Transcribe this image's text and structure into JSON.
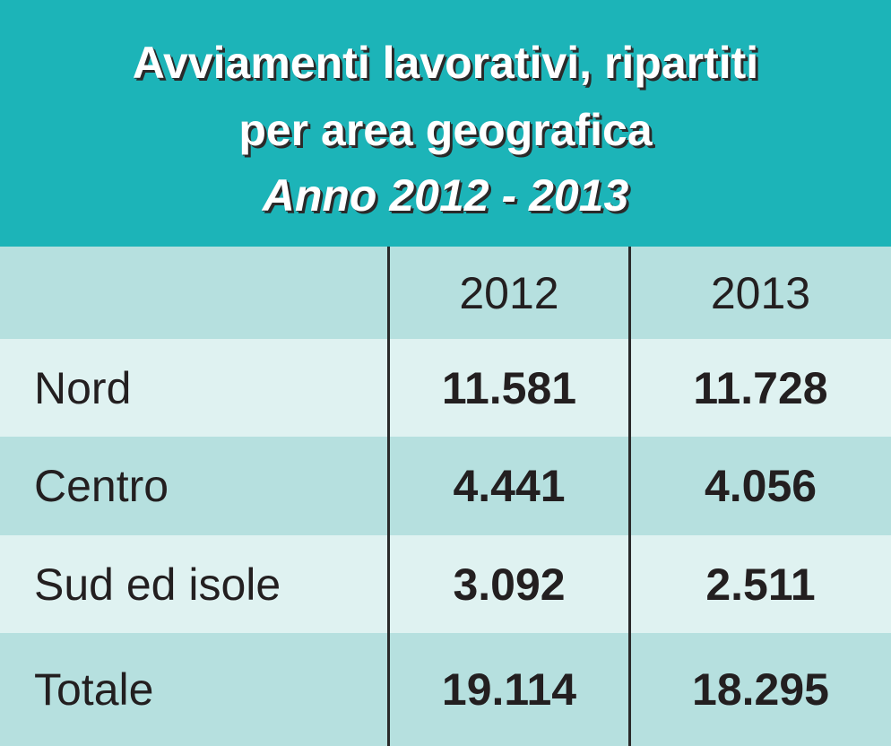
{
  "header": {
    "title_lines": [
      "Avviamenti lavorativi, ripartiti",
      "per area geografica",
      "Anno 2012 - 2013"
    ]
  },
  "table": {
    "columns": [
      "2012",
      "2013"
    ],
    "rows": [
      [
        "Nord",
        "11.581",
        "11.728"
      ],
      [
        "Centro",
        "4.441",
        "4.056"
      ],
      [
        "Sud ed isole",
        "3.092",
        "2.511"
      ],
      [
        "Totale",
        "19.114",
        "18.295"
      ]
    ]
  }
}
